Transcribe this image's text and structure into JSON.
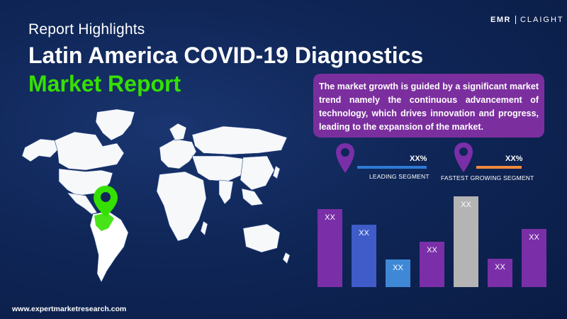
{
  "header": {
    "kicker": "Report Highlights",
    "title_line1": "Latin America COVID-19 Diagnostics",
    "title_line2": "Market Report"
  },
  "logo": {
    "left": "EMR",
    "right": "CLAIGHT"
  },
  "info_box": {
    "text": "The market growth is guided by a significant market trend namely the continuous advancement of technology, which drives innovation and progress, leading to the expansion of the market."
  },
  "segments": [
    {
      "label": "LEADING SEGMENT",
      "value": "XX%",
      "color": "#2f7bd6"
    },
    {
      "label": "FASTEST GROWING SEGMENT",
      "value": "XX%",
      "color": "#f08a3c"
    }
  ],
  "chart_data": {
    "type": "bar",
    "categories": [
      "",
      "",
      "",
      "",
      "",
      "",
      ""
    ],
    "value_labels": [
      "XX",
      "XX",
      "XX",
      "XX",
      "XX",
      "XX",
      "XX"
    ],
    "values": [
      110,
      88,
      39,
      64,
      128,
      40,
      82
    ],
    "colors": [
      "#7a2fa8",
      "#3f5cc9",
      "#3f88d6",
      "#7a2fa8",
      "#b4b4b4",
      "#7a2fa8",
      "#7a2fa8"
    ],
    "title": "",
    "xlabel": "",
    "ylabel": "",
    "ylim": [
      0,
      128
    ]
  },
  "map": {
    "highlight_color": "#35e000",
    "land_color": "#ffffff",
    "highlight_region": "Latin America"
  },
  "footer": {
    "url": "www.expertmarketresearch.com"
  }
}
